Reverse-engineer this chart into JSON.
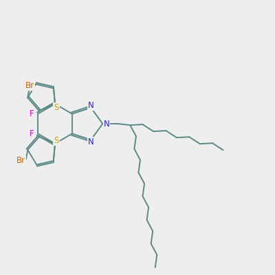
{
  "bg_color": "#eeeeee",
  "bond_color": "#5a8a85",
  "bond_lw": 1.4,
  "N_color": "#2020ee",
  "S_color": "#c8a800",
  "Br_color": "#cc6600",
  "F_color": "#dd00dd",
  "text_fontsize": 8.5,
  "figsize": [
    4.0,
    4.0
  ],
  "dpi": 100,
  "xlim": [
    0,
    10
  ],
  "ylim": [
    0,
    10
  ]
}
